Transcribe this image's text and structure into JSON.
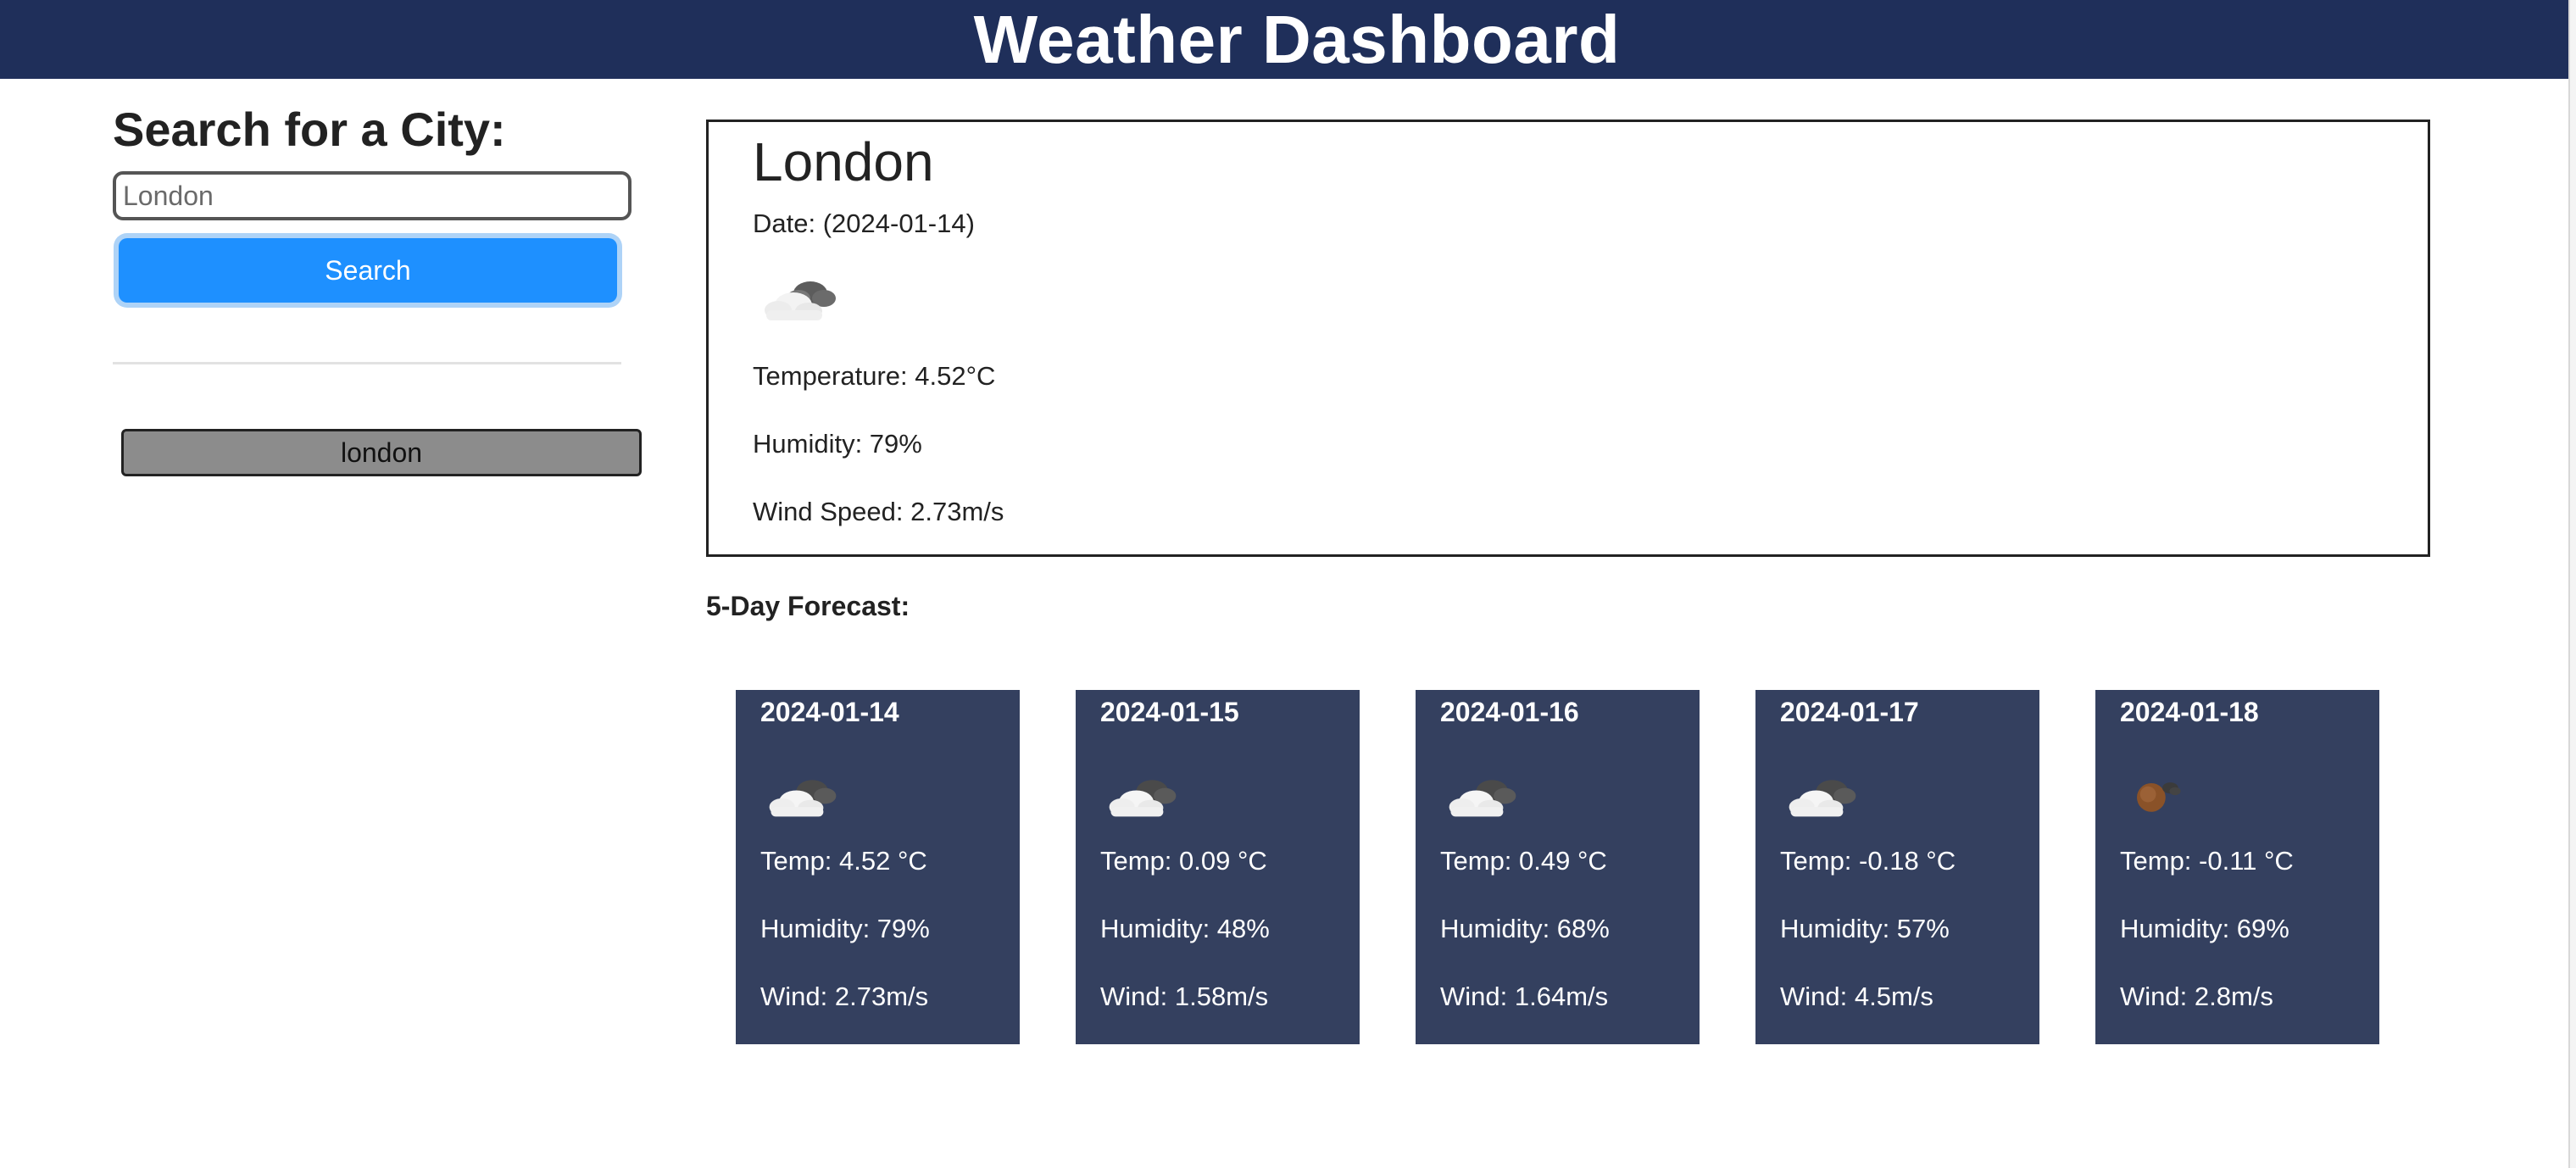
{
  "header": {
    "title": "Weather Dashboard"
  },
  "sidebar": {
    "heading": "Search for a City:",
    "search_placeholder": "London",
    "search_label": "Search",
    "history": [
      "london"
    ]
  },
  "current": {
    "city": "London",
    "date": "Date: (2024-01-14)",
    "icon": "cloudy-icon",
    "temperature": "Temperature: 4.52°C",
    "humidity": "Humidity: 79%",
    "wind": "Wind Speed: 2.73m/s"
  },
  "forecast": {
    "title": "5-Day Forecast:",
    "days": [
      {
        "date": "2024-01-14",
        "icon": "cloudy-icon",
        "temp": "Temp: 4.52 °C",
        "humidity": "Humidity: 79%",
        "wind": "Wind: 2.73m/s"
      },
      {
        "date": "2024-01-15",
        "icon": "cloudy-icon",
        "temp": "Temp: 0.09 °C",
        "humidity": "Humidity: 48%",
        "wind": "Wind: 1.58m/s"
      },
      {
        "date": "2024-01-16",
        "icon": "cloudy-icon",
        "temp": "Temp: 0.49 °C",
        "humidity": "Humidity: 68%",
        "wind": "Wind: 1.64m/s"
      },
      {
        "date": "2024-01-17",
        "icon": "cloudy-icon",
        "temp": "Temp: -0.18 °C",
        "humidity": "Humidity: 57%",
        "wind": "Wind: 4.5m/s"
      },
      {
        "date": "2024-01-18",
        "icon": "sun-behind-cloud-icon",
        "temp": "Temp: -0.11 °C",
        "humidity": "Humidity: 69%",
        "wind": "Wind: 2.8m/s"
      }
    ]
  },
  "colors": {
    "header_bg": "#1f2f5a",
    "card_bg": "#34405f",
    "search_button": "#1e90ff",
    "history_button": "#8c8c8c"
  }
}
